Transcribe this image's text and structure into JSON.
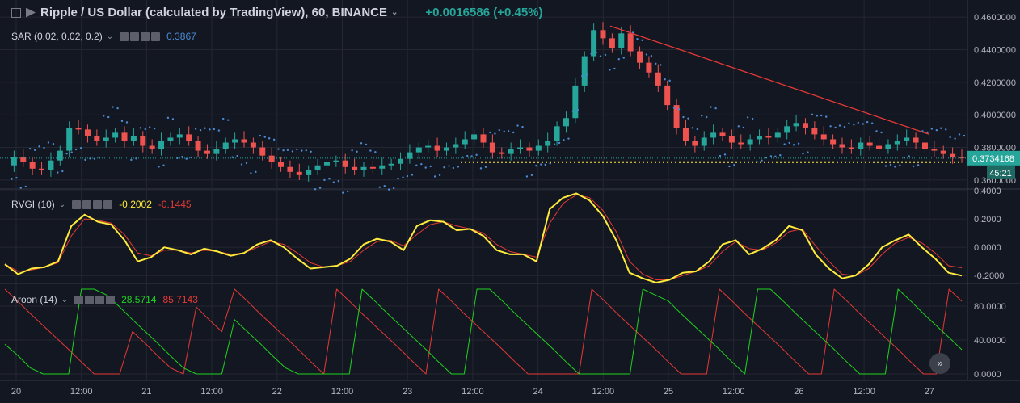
{
  "header": {
    "title": "Ripple / US Dollar (calculated by TradingView), 60, BINANCE",
    "change": "+0.0016586 (+0.45%)"
  },
  "indicators": {
    "sar": {
      "label": "SAR (0.02, 0.02, 0.2)",
      "value": "0.3867",
      "value_color": "#4a8bd4"
    },
    "rvgi": {
      "label": "RVGI (10)",
      "value1": "-0.2002",
      "value1_color": "#ffeb3b",
      "value2": "-0.1445",
      "value2_color": "#e53935"
    },
    "aroon": {
      "label": "Aroon (14)",
      "value1": "28.5714",
      "value1_color": "#1fd31f",
      "value2": "85.7143",
      "value2_color": "#e53935"
    }
  },
  "price_axis": {
    "labels": [
      "0.4600000",
      "0.4400000",
      "0.4200000",
      "0.4000000",
      "0.3800000",
      "0.3600000"
    ],
    "current_price": "0.3734168",
    "countdown": "45:21"
  },
  "rvgi_axis": {
    "labels": [
      "0.4000",
      "0.2000",
      "0.0000",
      "-0.2000"
    ]
  },
  "aroon_axis": {
    "labels": [
      "80.0000",
      "40.0000",
      "0.0000"
    ]
  },
  "time_axis": {
    "labels": [
      "20",
      "12:00",
      "21",
      "12:00",
      "22",
      "12:00",
      "23",
      "12:00",
      "24",
      "12:00",
      "25",
      "12:00",
      "26",
      "12:00",
      "27"
    ]
  },
  "colors": {
    "up": "#26a69a",
    "down": "#ef5350",
    "sar": "#4a8bd4",
    "trend": "#e53935",
    "support": "#ffeb3b",
    "aroon_up": "#1fd31f",
    "aroon_down": "#e53935",
    "rvgi_main": "#ffeb3b",
    "rvgi_signal": "#e53935"
  },
  "chart_data": [
    {
      "type": "candlestick",
      "title": "Ripple / US Dollar (calculated by TradingView), 60, BINANCE",
      "ylim": [
        0.355,
        0.468
      ],
      "x_labels": [
        "20",
        "12:00",
        "21",
        "12:00",
        "22",
        "12:00",
        "23",
        "12:00",
        "24",
        "12:00",
        "25",
        "12:00",
        "26",
        "12:00",
        "27"
      ],
      "close_path": [
        0.369,
        0.374,
        0.371,
        0.367,
        0.366,
        0.372,
        0.378,
        0.392,
        0.391,
        0.387,
        0.384,
        0.386,
        0.389,
        0.384,
        0.387,
        0.381,
        0.379,
        0.384,
        0.386,
        0.388,
        0.384,
        0.378,
        0.376,
        0.379,
        0.383,
        0.385,
        0.383,
        0.38,
        0.375,
        0.371,
        0.368,
        0.365,
        0.363,
        0.366,
        0.369,
        0.371,
        0.372,
        0.368,
        0.366,
        0.368,
        0.367,
        0.369,
        0.37,
        0.373,
        0.377,
        0.38,
        0.381,
        0.378,
        0.38,
        0.382,
        0.385,
        0.388,
        0.383,
        0.377,
        0.376,
        0.379,
        0.38,
        0.378,
        0.381,
        0.384,
        0.393,
        0.398,
        0.418,
        0.436,
        0.452,
        0.447,
        0.441,
        0.45,
        0.439,
        0.432,
        0.426,
        0.418,
        0.406,
        0.392,
        0.384,
        0.381,
        0.386,
        0.389,
        0.387,
        0.383,
        0.382,
        0.385,
        0.387,
        0.386,
        0.389,
        0.393,
        0.395,
        0.392,
        0.388,
        0.385,
        0.382,
        0.38,
        0.379,
        0.383,
        0.381,
        0.379,
        0.382,
        0.384,
        0.386,
        0.383,
        0.379,
        0.378,
        0.376,
        0.374,
        0.3734
      ],
      "parabolic_sar_value": 0.3867,
      "trendline": [
        [
          0.4545,
          "24 13:00"
        ],
        [
          0.388,
          "27 00:00"
        ]
      ],
      "support_line": 0.371,
      "current_price": 0.3734168
    },
    {
      "type": "line",
      "title": "RVGI (10)",
      "ylim": [
        -0.25,
        0.4
      ],
      "series": [
        {
          "name": "RVGI",
          "color": "#ffeb3b",
          "values": [
            -0.12,
            -0.19,
            -0.15,
            -0.14,
            -0.1,
            0.15,
            0.23,
            0.18,
            0.16,
            0.05,
            -0.1,
            -0.07,
            0.0,
            -0.02,
            -0.05,
            -0.01,
            -0.03,
            -0.06,
            -0.04,
            0.02,
            0.05,
            0.0,
            -0.08,
            -0.15,
            -0.14,
            -0.13,
            -0.08,
            0.02,
            0.06,
            0.04,
            -0.02,
            0.15,
            0.19,
            0.18,
            0.12,
            0.13,
            0.08,
            -0.02,
            -0.05,
            -0.05,
            -0.1,
            0.27,
            0.35,
            0.38,
            0.33,
            0.22,
            0.05,
            -0.18,
            -0.22,
            -0.25,
            -0.23,
            -0.18,
            -0.17,
            -0.1,
            0.02,
            0.05,
            -0.05,
            -0.01,
            0.05,
            0.15,
            0.12,
            -0.05,
            -0.15,
            -0.22,
            -0.2,
            -0.12,
            0.0,
            0.05,
            0.09,
            0.0,
            -0.08,
            -0.18,
            -0.2002
          ]
        },
        {
          "name": "Signal",
          "color": "#e53935",
          "values": [
            -0.12,
            -0.17,
            -0.16,
            -0.14,
            -0.11,
            0.08,
            0.2,
            0.19,
            0.17,
            0.09,
            -0.04,
            -0.06,
            -0.02,
            -0.02,
            -0.04,
            -0.02,
            -0.03,
            -0.05,
            -0.04,
            0.0,
            0.04,
            0.02,
            -0.04,
            -0.11,
            -0.14,
            -0.13,
            -0.1,
            -0.02,
            0.04,
            0.05,
            0.01,
            0.09,
            0.16,
            0.18,
            0.15,
            0.13,
            0.1,
            0.02,
            -0.03,
            -0.05,
            -0.07,
            0.17,
            0.31,
            0.37,
            0.35,
            0.26,
            0.11,
            -0.1,
            -0.19,
            -0.23,
            -0.23,
            -0.2,
            -0.17,
            -0.13,
            -0.03,
            0.04,
            -0.01,
            -0.02,
            0.03,
            0.11,
            0.13,
            0.01,
            -0.1,
            -0.19,
            -0.2,
            -0.15,
            -0.05,
            0.03,
            0.07,
            0.03,
            -0.04,
            -0.13,
            -0.1445
          ]
        }
      ]
    },
    {
      "type": "line",
      "title": "Aroon (14)",
      "ylim": [
        0,
        100
      ],
      "series": [
        {
          "name": "Aroon Up",
          "color": "#1fd31f",
          "values": [
            35,
            22,
            7,
            0,
            0,
            0,
            100,
            100,
            93,
            79,
            64,
            50,
            36,
            21,
            7,
            0,
            0,
            0,
            64,
            50,
            36,
            21,
            7,
            0,
            0,
            0,
            0,
            0,
            100,
            86,
            71,
            57,
            43,
            29,
            14,
            0,
            0,
            100,
            100,
            86,
            71,
            57,
            43,
            29,
            14,
            0,
            0,
            0,
            0,
            0,
            100,
            93,
            86,
            71,
            57,
            43,
            29,
            14,
            0,
            100,
            100,
            86,
            71,
            57,
            43,
            29,
            14,
            0,
            0,
            0,
            100,
            86,
            71,
            57,
            43,
            28.5714
          ]
        },
        {
          "name": "Aroon Down",
          "color": "#e53935",
          "values": [
            100,
            86,
            71,
            57,
            43,
            29,
            14,
            0,
            0,
            0,
            50,
            36,
            21,
            7,
            0,
            79,
            64,
            50,
            100,
            86,
            71,
            57,
            43,
            29,
            14,
            0,
            100,
            86,
            71,
            57,
            43,
            29,
            14,
            0,
            100,
            86,
            71,
            57,
            43,
            29,
            14,
            0,
            0,
            0,
            0,
            0,
            100,
            86,
            71,
            57,
            43,
            29,
            14,
            0,
            0,
            0,
            100,
            86,
            71,
            57,
            43,
            29,
            14,
            0,
            0,
            100,
            86,
            71,
            57,
            43,
            29,
            14,
            0,
            0,
            100,
            85.7143
          ]
        }
      ]
    }
  ]
}
